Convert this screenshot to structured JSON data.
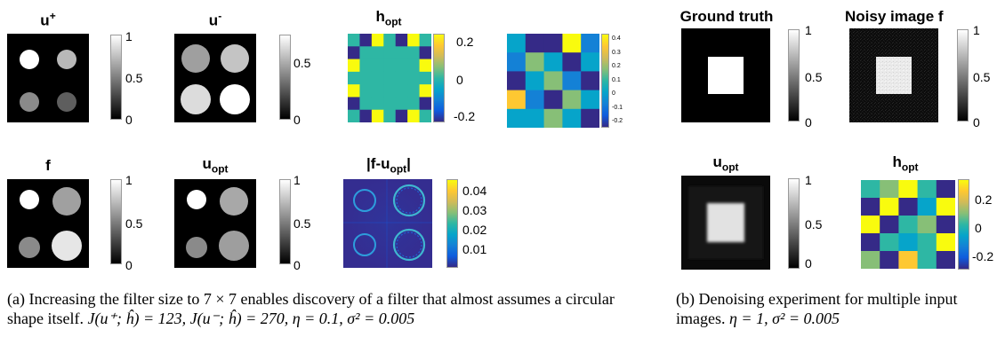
{
  "gray_ramp": [
    "#000000",
    "#ffffff"
  ],
  "parula_ramp": [
    "#352a87",
    "#0f5cdd",
    "#1481d6",
    "#06a4ca",
    "#2eb7a4",
    "#87bf77",
    "#d1bb59",
    "#fec832",
    "#f9fb0e"
  ],
  "panels": {
    "u_plus": {
      "title_base": "u",
      "title_sup": "+",
      "ticks": [
        "1",
        "0.5",
        "0"
      ]
    },
    "u_minus": {
      "title_base": "u",
      "title_sup": "-",
      "ticks": [
        "0.5",
        "0"
      ]
    },
    "h_opt_a": {
      "title_base": "h",
      "title_sub": "opt",
      "ticks": [
        "0.2",
        "0",
        "-0.2"
      ]
    },
    "h_small": {
      "ticks": [
        "0.4",
        "0.3",
        "0.2",
        "0.1",
        "0",
        "-0.1",
        "-0.2"
      ]
    },
    "f": {
      "title": "f",
      "ticks": [
        "1",
        "0.5",
        "0"
      ]
    },
    "u_opt_a": {
      "title_base": "u",
      "title_sub": "opt",
      "ticks": [
        "1",
        "0.5",
        "0"
      ]
    },
    "abs_diff": {
      "title_prefix": "|f-u",
      "title_sub": "opt",
      "title_suffix": "|",
      "ticks": [
        "0.04",
        "0.03",
        "0.02",
        "0.01"
      ]
    },
    "ground_truth": {
      "title": "Ground truth",
      "ticks": [
        "1",
        "0.5",
        "0"
      ]
    },
    "noisy": {
      "title": "Noisy image f",
      "ticks": [
        "1",
        "0.5",
        "0"
      ]
    },
    "u_opt_b": {
      "title_base": "u",
      "title_sub": "opt",
      "ticks": [
        "1",
        "0.5",
        "0"
      ]
    },
    "h_opt_b": {
      "title_base": "h",
      "title_sub": "opt",
      "ticks": [
        "0.2",
        "0",
        "-0.2"
      ]
    }
  },
  "captions": {
    "a_label": "(a)",
    "a_text": "Increasing the filter size to 7 × 7 enables discovery of a filter that almost assumes a circular shape itself.",
    "a_math": "J(u⁺; ĥ) = 123, J(u⁻; ĥ) = 270, η = 0.1, σ² = 0.005",
    "b_label": "(b)",
    "b_text": "Denoising experiment for multiple input images.",
    "b_math": "η = 1, σ² = 0.005"
  }
}
